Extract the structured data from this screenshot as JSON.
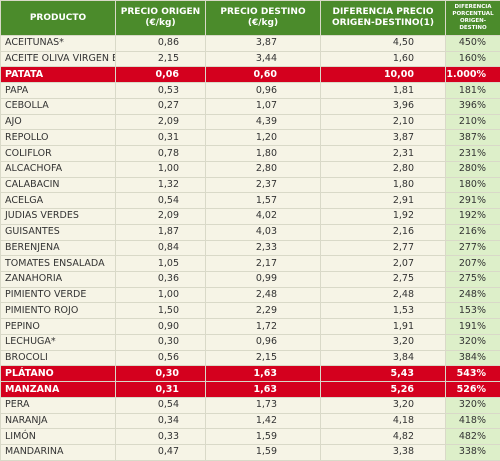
{
  "table": {
    "headers": [
      "PRODUCTO",
      "PRECIO ORIGEN (€/kg)",
      "PRECIO DESTINO (€/kg)",
      "DIFERENCIA PRECIO ORIGEN-DESTINO(1)",
      "DIFERENCIA PORCENTUAL ORIGEN-DESTINO"
    ],
    "highlighted_rows": [
      2,
      21,
      22
    ],
    "rows": [
      [
        "ACEITUNAS*",
        "0,86",
        "3,87",
        "4,50",
        "450%"
      ],
      [
        "ACEITE OLIVA VIRGEN EXTRA*",
        "2,15",
        "3,44",
        "1,60",
        "160%"
      ],
      [
        "PATATA",
        "0,06",
        "0,60",
        "10,00",
        "1.000%"
      ],
      [
        "PAPA",
        "0,53",
        "0,96",
        "1,81",
        "181%"
      ],
      [
        "CEBOLLA",
        "0,27",
        "1,07",
        "3,96",
        "396%"
      ],
      [
        "AJO",
        "2,09",
        "4,39",
        "2,10",
        "210%"
      ],
      [
        "REPOLLO",
        "0,31",
        "1,20",
        "3,87",
        "387%"
      ],
      [
        "COLIFLOR",
        "0,78",
        "1,80",
        "2,31",
        "231%"
      ],
      [
        "ALCACHOFA",
        "1,00",
        "2,80",
        "2,80",
        "280%"
      ],
      [
        "CALABACIN",
        "1,32",
        "2,37",
        "1,80",
        "180%"
      ],
      [
        "ACELGA",
        "0,54",
        "1,57",
        "2,91",
        "291%"
      ],
      [
        "JUDIAS VERDES",
        "2,09",
        "4,02",
        "1,92",
        "192%"
      ],
      [
        "GUISANTES",
        "1,87",
        "4,03",
        "2,16",
        "216%"
      ],
      [
        "BERENJENA",
        "0,84",
        "2,33",
        "2,77",
        "277%"
      ],
      [
        "TOMATES ENSALADA",
        "1,05",
        "2,17",
        "2,07",
        "207%"
      ],
      [
        "ZANAHORIA",
        "0,36",
        "0,99",
        "2,75",
        "275%"
      ],
      [
        "PIMIENTO VERDE",
        "1,00",
        "2,48",
        "2,48",
        "248%"
      ],
      [
        "PIMIENTO ROJO",
        "1,50",
        "2,29",
        "1,53",
        "153%"
      ],
      [
        "PEPINO",
        "0,90",
        "1,72",
        "1,91",
        "191%"
      ],
      [
        "LECHUGA*",
        "0,30",
        "0,96",
        "3,20",
        "320%"
      ],
      [
        "BROCOLI",
        "0,56",
        "2,15",
        "3,84",
        "384%"
      ],
      [
        "PLÁTANO",
        "0,30",
        "1,63",
        "5,43",
        "543%"
      ],
      [
        "MANZANA",
        "0,31",
        "1,63",
        "5,26",
        "526%"
      ],
      [
        "PERA",
        "0,54",
        "1,73",
        "3,20",
        "320%"
      ],
      [
        "NARANJA",
        "0,34",
        "1,42",
        "4,18",
        "418%"
      ],
      [
        "LIMÓN",
        "0,33",
        "1,59",
        "4,82",
        "482%"
      ],
      [
        "MANDARINA",
        "0,47",
        "1,59",
        "3,38",
        "338%"
      ]
    ]
  }
}
